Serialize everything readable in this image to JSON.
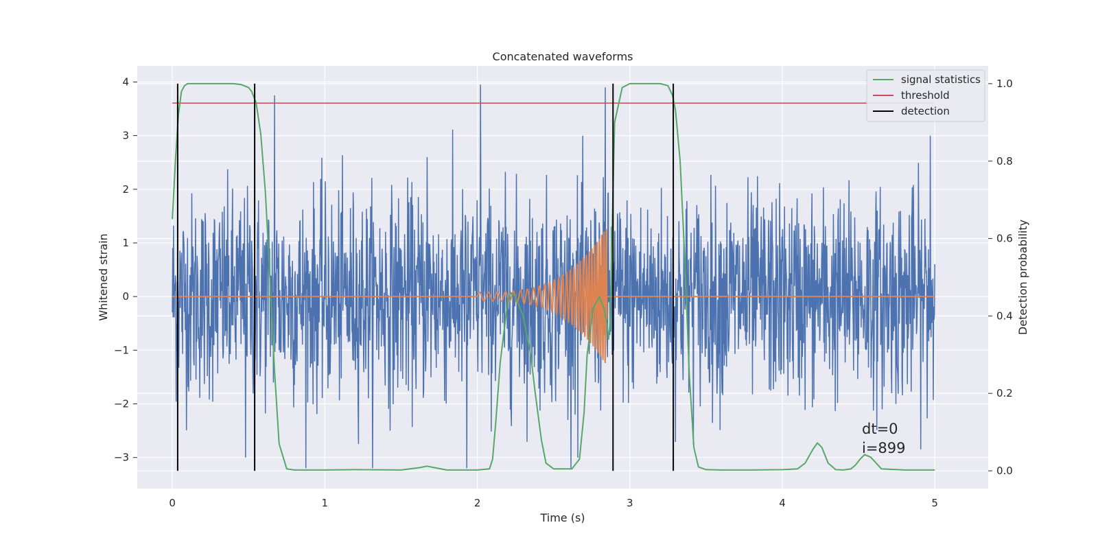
{
  "chart_data": {
    "type": "line",
    "title": "Concatenated waveforms",
    "xlabel": "Time (s)",
    "ylabel": "Whitened strain",
    "y2label": "Detection probability",
    "xlim": [
      -0.23,
      5.35
    ],
    "ylim": [
      -3.58,
      4.3
    ],
    "y2lim": [
      -0.046,
      1.046
    ],
    "x_ticks": [
      0,
      1,
      2,
      3,
      4,
      5
    ],
    "y_ticks": [
      -3,
      -2,
      -1,
      0,
      1,
      2,
      3,
      4
    ],
    "y2_ticks": [
      0.0,
      0.2,
      0.4,
      0.6,
      0.8,
      1.0
    ],
    "grid": true,
    "legend_position": "upper-right",
    "colors": {
      "strain": "#4c72b0",
      "template": "#dd8452",
      "signal_statistics": "#55a868",
      "threshold": "#c44e52",
      "detection": "#000000",
      "background": "#eaeaf2",
      "grid": "#ffffff"
    },
    "legend": [
      {
        "label": "signal statistics",
        "color": "#55a868"
      },
      {
        "label": "threshold",
        "color": "#c44e52"
      },
      {
        "label": "detection",
        "color": "#000000"
      }
    ],
    "strain_noise": {
      "x_start": 0,
      "x_end": 5,
      "points": 2000,
      "rms": 0.95,
      "min": -3.2,
      "max": 3.95
    },
    "strain_spikes": [
      {
        "x": 0.48,
        "y": -3.0
      },
      {
        "x": 0.67,
        "y": 3.75
      },
      {
        "x": 1.67,
        "y": 2.6
      },
      {
        "x": 1.93,
        "y": -3.2
      },
      {
        "x": 2.02,
        "y": 3.95
      },
      {
        "x": 2.66,
        "y": -3.0
      },
      {
        "x": 2.84,
        "y": 3.9
      },
      {
        "x": 4.97,
        "y": 3.0
      }
    ],
    "template": {
      "zero_segments": [
        [
          0,
          2.0
        ],
        [
          2.85,
          5.0
        ]
      ],
      "chirp": {
        "x_start": 2.0,
        "x_end": 2.85,
        "amp_start": 0.08,
        "amp_end": 1.3,
        "freq_start_hz": 17,
        "freq_end_hz": 70
      }
    },
    "threshold_level": 0.95,
    "threshold_xrange": [
      0,
      5
    ],
    "detections": [
      0.035,
      0.54,
      2.89,
      3.285
    ],
    "signal_statistics": {
      "x": [
        0.0,
        0.02,
        0.04,
        0.06,
        0.08,
        0.1,
        0.2,
        0.3,
        0.4,
        0.45,
        0.5,
        0.52,
        0.55,
        0.58,
        0.61,
        0.64,
        0.67,
        0.7,
        0.75,
        0.8,
        1.0,
        1.2,
        1.5,
        1.62,
        1.67,
        1.72,
        1.8,
        2.0,
        2.08,
        2.1,
        2.12,
        2.15,
        2.2,
        2.22,
        2.25,
        2.3,
        2.35,
        2.38,
        2.42,
        2.45,
        2.5,
        2.62,
        2.67,
        2.7,
        2.72,
        2.76,
        2.8,
        2.83,
        2.85,
        2.86,
        2.87,
        2.88,
        2.9,
        2.95,
        3.0,
        3.1,
        3.2,
        3.25,
        3.28,
        3.3,
        3.33,
        3.36,
        3.39,
        3.42,
        3.45,
        3.5,
        3.6,
        3.8,
        4.0,
        4.1,
        4.15,
        4.2,
        4.23,
        4.26,
        4.3,
        4.35,
        4.4,
        4.45,
        4.48,
        4.51,
        4.54,
        4.58,
        4.65,
        4.8,
        5.0
      ],
      "y": [
        0.65,
        0.8,
        0.92,
        0.98,
        0.995,
        1.0,
        1.0,
        1.0,
        1.0,
        0.998,
        0.99,
        0.98,
        0.95,
        0.87,
        0.72,
        0.5,
        0.26,
        0.07,
        0.005,
        0.002,
        0.002,
        0.003,
        0.002,
        0.008,
        0.012,
        0.008,
        0.002,
        0.002,
        0.005,
        0.03,
        0.12,
        0.28,
        0.44,
        0.46,
        0.45,
        0.4,
        0.3,
        0.2,
        0.08,
        0.02,
        0.005,
        0.005,
        0.03,
        0.15,
        0.3,
        0.42,
        0.45,
        0.42,
        0.38,
        0.34,
        0.38,
        0.55,
        0.9,
        0.99,
        1.0,
        1.0,
        1.0,
        0.995,
        0.97,
        0.93,
        0.8,
        0.55,
        0.25,
        0.06,
        0.01,
        0.003,
        0.002,
        0.002,
        0.003,
        0.005,
        0.02,
        0.055,
        0.072,
        0.06,
        0.02,
        0.003,
        0.002,
        0.005,
        0.015,
        0.03,
        0.042,
        0.035,
        0.005,
        0.002,
        0.002
      ]
    },
    "annotation": {
      "line1": "dt=0",
      "line2": "i=899"
    }
  }
}
